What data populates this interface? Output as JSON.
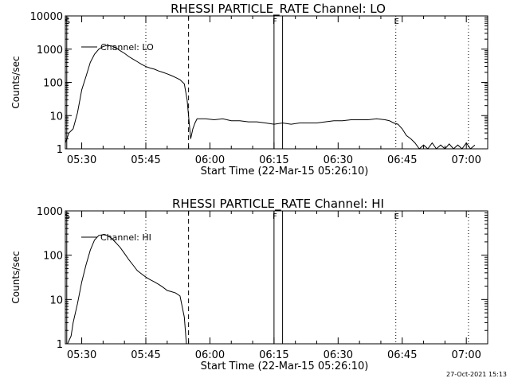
{
  "chart_data": [
    {
      "type": "line",
      "title": "RHESSI PARTICLE_RATE Channel: LO",
      "xlabel": "Start Time (22-Mar-15 05:26:10)",
      "ylabel": "Counts/sec",
      "yscale": "log",
      "ylim": [
        1,
        10000
      ],
      "yticks": [
        {
          "value": 1,
          "label": "1"
        },
        {
          "value": 10,
          "label": "10"
        },
        {
          "value": 100,
          "label": "100"
        },
        {
          "value": 1000,
          "label": "1000"
        },
        {
          "value": 10000,
          "label": "10000"
        }
      ],
      "xlim": [
        "05:26:10",
        "07:05:00"
      ],
      "xticks": [
        "05:30",
        "05:45",
        "06:00",
        "06:15",
        "06:30",
        "06:45",
        "07:00"
      ],
      "legend": {
        "entries": [
          "Channel: LO"
        ],
        "placement": "top-left"
      },
      "markers": [
        {
          "time": "05:26:30",
          "label": "S",
          "style": "solid"
        },
        {
          "time": "05:45:00",
          "label": "",
          "style": "dotted"
        },
        {
          "time": "05:55:00",
          "label": "",
          "style": "dashed"
        },
        {
          "time": "06:15:00",
          "label": "F",
          "style": "solid"
        },
        {
          "time": "06:17:00",
          "label": "",
          "style": "solid"
        },
        {
          "time": "06:43:30",
          "label": "E",
          "style": "dotted"
        },
        {
          "time": "07:00:30",
          "label": "",
          "style": "dotted"
        }
      ],
      "series": [
        {
          "name": "Channel: LO",
          "x": [
            "05:26:10",
            "05:27:00",
            "05:28:00",
            "05:29:00",
            "05:30:00",
            "05:31:00",
            "05:32:00",
            "05:33:00",
            "05:34:00",
            "05:35:00",
            "05:36:00",
            "05:37:00",
            "05:38:00",
            "05:39:00",
            "05:40:00",
            "05:41:00",
            "05:42:00",
            "05:43:00",
            "05:44:00",
            "05:45:00",
            "05:46:00",
            "05:47:00",
            "05:48:00",
            "05:49:00",
            "05:50:00",
            "05:51:00",
            "05:52:00",
            "05:53:00",
            "05:54:00",
            "05:54:40",
            "05:55:00",
            "05:55:30",
            "05:56:00",
            "05:56:30",
            "05:57:00",
            "05:59:00",
            "06:01:00",
            "06:03:00",
            "06:05:00",
            "06:07:00",
            "06:09:00",
            "06:11:00",
            "06:13:00",
            "06:15:00",
            "06:17:00",
            "06:19:00",
            "06:21:00",
            "06:23:00",
            "06:25:00",
            "06:27:00",
            "06:29:00",
            "06:31:00",
            "06:33:00",
            "06:35:00",
            "06:37:00",
            "06:39:00",
            "06:41:00",
            "06:42:00",
            "06:43:00",
            "06:44:00",
            "06:45:00",
            "06:46:00",
            "06:47:00",
            "06:48:00",
            "06:49:00",
            "06:50:00",
            "06:51:00",
            "06:52:00",
            "06:53:00",
            "06:54:00",
            "06:55:00",
            "06:56:00",
            "06:57:00",
            "06:58:00",
            "06:59:00",
            "07:00:00",
            "07:01:00",
            "07:02:00"
          ],
          "y": [
            1.5,
            3,
            4,
            12,
            60,
            150,
            400,
            700,
            1000,
            1200,
            1300,
            1250,
            1100,
            900,
            750,
            600,
            500,
            420,
            350,
            300,
            270,
            250,
            220,
            200,
            180,
            160,
            140,
            120,
            90,
            30,
            10,
            2,
            4,
            6,
            8,
            8,
            7.5,
            8,
            7,
            7,
            6.5,
            6.5,
            6,
            5.5,
            6,
            5.5,
            6,
            6,
            6,
            6.5,
            7,
            7,
            7.5,
            7.5,
            7.5,
            8,
            7.5,
            7,
            6,
            5.5,
            4,
            2.5,
            2,
            1.5,
            1,
            1.3,
            1,
            1.5,
            1,
            1.3,
            1,
            1.4,
            1,
            1.3,
            1,
            1.5,
            1,
            1.3
          ]
        }
      ]
    },
    {
      "type": "line",
      "title": "RHESSI PARTICLE_RATE Channel: HI",
      "xlabel": "Start Time (22-Mar-15 05:26:10)",
      "ylabel": "Counts/sec",
      "yscale": "log",
      "ylim": [
        1,
        1000
      ],
      "yticks": [
        {
          "value": 1,
          "label": "1"
        },
        {
          "value": 10,
          "label": "10"
        },
        {
          "value": 100,
          "label": "100"
        },
        {
          "value": 1000,
          "label": "1000"
        }
      ],
      "xlim": [
        "05:26:10",
        "07:05:00"
      ],
      "xticks": [
        "05:30",
        "05:45",
        "06:00",
        "06:15",
        "06:30",
        "06:45",
        "07:00"
      ],
      "legend": {
        "entries": [
          "Channel: HI"
        ],
        "placement": "top-left"
      },
      "markers": [
        {
          "time": "05:26:30",
          "label": "S",
          "style": "solid"
        },
        {
          "time": "05:45:00",
          "label": "",
          "style": "dotted"
        },
        {
          "time": "05:55:00",
          "label": "",
          "style": "dashed"
        },
        {
          "time": "06:15:00",
          "label": "F",
          "style": "solid"
        },
        {
          "time": "06:17:00",
          "label": "",
          "style": "solid"
        },
        {
          "time": "06:43:30",
          "label": "E",
          "style": "dotted"
        },
        {
          "time": "07:00:30",
          "label": "",
          "style": "dotted"
        }
      ],
      "series": [
        {
          "name": "Channel: HI",
          "x": [
            "05:26:40",
            "05:27:30",
            "05:28:00",
            "05:29:00",
            "05:30:00",
            "05:31:00",
            "05:32:00",
            "05:33:00",
            "05:34:00",
            "05:35:00",
            "05:36:00",
            "05:37:00",
            "05:38:00",
            "05:39:00",
            "05:40:00",
            "05:41:00",
            "05:42:00",
            "05:43:00",
            "05:44:00",
            "05:45:00",
            "05:46:00",
            "05:47:00",
            "05:48:00",
            "05:49:00",
            "05:50:00",
            "05:51:00",
            "05:52:00",
            "05:53:00",
            "05:54:00",
            "05:54:30"
          ],
          "y": [
            1,
            1.5,
            3,
            8,
            25,
            60,
            130,
            220,
            280,
            290,
            280,
            240,
            190,
            150,
            110,
            80,
            60,
            45,
            38,
            32,
            28,
            25,
            22,
            19,
            16,
            15,
            14,
            12,
            4,
            1
          ]
        }
      ]
    }
  ],
  "footer": {
    "timestamp": "27-Oct-2021 15:13"
  }
}
